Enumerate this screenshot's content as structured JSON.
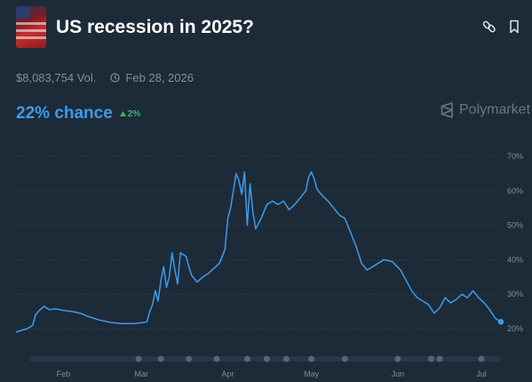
{
  "header": {
    "title": "US recession in 2025?",
    "icon": "us-flag-market-icon",
    "actions": [
      {
        "name": "link-icon"
      },
      {
        "name": "bookmark-icon"
      }
    ]
  },
  "meta": {
    "volume": "$8,083,754 Vol.",
    "end_date": "Feb 28, 2026"
  },
  "odds": {
    "chance": "22% chance",
    "delta": "2%",
    "delta_direction": "up",
    "delta_color": "#3db468"
  },
  "brand": {
    "name": "Polymarket"
  },
  "colors": {
    "background": "#1d2b39",
    "line": "#3d9be9",
    "grid": "#3a4a5a",
    "text_muted": "#858d96"
  },
  "chart_data": {
    "type": "line",
    "x_ticks": [
      "Feb",
      "Mar",
      "Apr",
      "May",
      "Jun",
      "Jul"
    ],
    "y_ticks": [
      "70%",
      "60%",
      "50%",
      "40%",
      "30%",
      "20%"
    ],
    "ylim": [
      20,
      70
    ],
    "xlim": [
      "Jan 15",
      "Jul 08"
    ],
    "grid": "horizontal dotted",
    "scrubber_dots": [
      "Feb 28",
      "Mar 08",
      "Mar 18",
      "Mar 28",
      "Apr 08",
      "Apr 15",
      "Apr 22",
      "May 01",
      "May 13",
      "Jun 01",
      "Jun 13",
      "Jun 16",
      "Jul 01"
    ],
    "series": [
      {
        "values": [
          [
            "Jan 15",
            19
          ],
          [
            "Jan 17",
            19.5
          ],
          [
            "Jan 19",
            20
          ],
          [
            "Jan 21",
            21
          ],
          [
            "Jan 22",
            24
          ],
          [
            "Jan 23",
            25
          ],
          [
            "Jan 25",
            26.5
          ],
          [
            "Jan 27",
            25.5
          ],
          [
            "Jan 29",
            25.8
          ],
          [
            "Feb 01",
            25.3
          ],
          [
            "Feb 04",
            25
          ],
          [
            "Feb 07",
            24.5
          ],
          [
            "Feb 10",
            23.5
          ],
          [
            "Feb 14",
            22.5
          ],
          [
            "Feb 18",
            21.8
          ],
          [
            "Feb 22",
            21.5
          ],
          [
            "Feb 26",
            21.5
          ],
          [
            "Mar 01",
            21.7
          ],
          [
            "Mar 03",
            22
          ],
          [
            "Mar 04",
            25
          ],
          [
            "Mar 05",
            27
          ],
          [
            "Mar 06",
            31
          ],
          [
            "Mar 07",
            28
          ],
          [
            "Mar 08",
            34
          ],
          [
            "Mar 09",
            38
          ],
          [
            "Mar 10",
            32
          ],
          [
            "Mar 11",
            35
          ],
          [
            "Mar 12",
            42
          ],
          [
            "Mar 13",
            37
          ],
          [
            "Mar 14",
            33
          ],
          [
            "Mar 15",
            42
          ],
          [
            "Mar 17",
            41
          ],
          [
            "Mar 18",
            38
          ],
          [
            "Mar 19",
            35.5
          ],
          [
            "Mar 21",
            33.5
          ],
          [
            "Mar 23",
            35
          ],
          [
            "Mar 25",
            36
          ],
          [
            "Mar 27",
            37.5
          ],
          [
            "Mar 29",
            39
          ],
          [
            "Mar 31",
            43
          ],
          [
            "Apr 01",
            52
          ],
          [
            "Apr 02",
            55
          ],
          [
            "Apr 03",
            60
          ],
          [
            "Apr 04",
            65
          ],
          [
            "Apr 05",
            63
          ],
          [
            "Apr 06",
            59
          ],
          [
            "Apr 07",
            65.5
          ],
          [
            "Apr 08",
            50
          ],
          [
            "Apr 09",
            62
          ],
          [
            "Apr 10",
            54
          ],
          [
            "Apr 11",
            49
          ],
          [
            "Apr 13",
            52
          ],
          [
            "Apr 15",
            56
          ],
          [
            "Apr 17",
            57
          ],
          [
            "Apr 19",
            56
          ],
          [
            "Apr 21",
            57
          ],
          [
            "Apr 23",
            54.5
          ],
          [
            "Apr 25",
            56
          ],
          [
            "Apr 27",
            58
          ],
          [
            "Apr 29",
            60
          ],
          [
            "Apr 30",
            64
          ],
          [
            "May 01",
            65.5
          ],
          [
            "May 02",
            63.5
          ],
          [
            "May 03",
            60.5
          ],
          [
            "May 05",
            58.5
          ],
          [
            "May 07",
            57
          ],
          [
            "May 09",
            55
          ],
          [
            "May 11",
            53
          ],
          [
            "May 13",
            52
          ],
          [
            "May 15",
            48
          ],
          [
            "May 17",
            44
          ],
          [
            "May 19",
            39
          ],
          [
            "May 21",
            37
          ],
          [
            "May 24",
            38.5
          ],
          [
            "May 27",
            40
          ],
          [
            "May 30",
            39.5
          ],
          [
            "Jun 02",
            37
          ],
          [
            "Jun 04",
            34
          ],
          [
            "Jun 06",
            31
          ],
          [
            "Jun 08",
            29
          ],
          [
            "Jun 10",
            28
          ],
          [
            "Jun 12",
            27
          ],
          [
            "Jun 14",
            24.5
          ],
          [
            "Jun 16",
            26
          ],
          [
            "Jun 18",
            29
          ],
          [
            "Jun 20",
            27.5
          ],
          [
            "Jun 22",
            28.5
          ],
          [
            "Jun 24",
            30
          ],
          [
            "Jun 26",
            29
          ],
          [
            "Jun 28",
            31
          ],
          [
            "Jun 30",
            29
          ],
          [
            "Jul 02",
            27.5
          ],
          [
            "Jul 04",
            25.5
          ],
          [
            "Jul 06",
            23
          ],
          [
            "Jul 08",
            22
          ]
        ]
      }
    ]
  }
}
